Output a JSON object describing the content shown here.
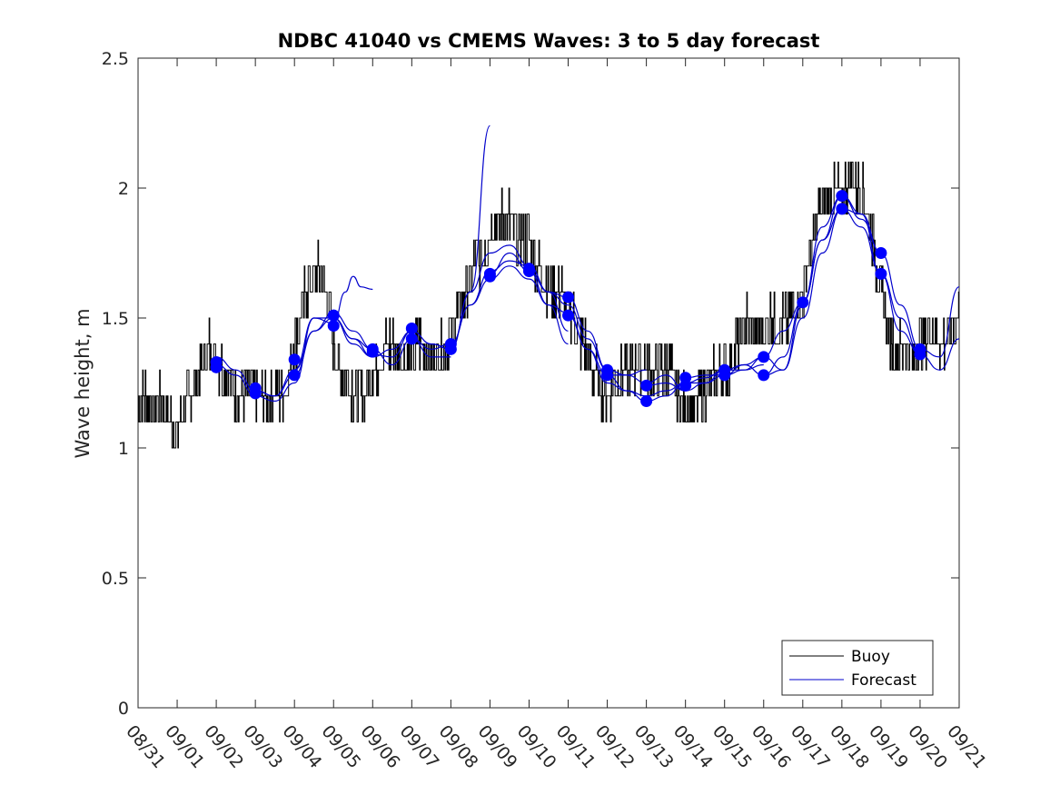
{
  "chart_data": {
    "type": "line",
    "title": "NDBC 41040 vs CMEMS Waves: 3 to 5 day forecast",
    "xlabel": "",
    "ylabel": "Wave height, m",
    "x_ticks": [
      "08/31",
      "09/01",
      "09/02",
      "09/03",
      "09/04",
      "09/05",
      "09/06",
      "09/07",
      "09/08",
      "09/09",
      "09/10",
      "09/11",
      "09/12",
      "09/13",
      "09/14",
      "09/15",
      "09/16",
      "09/17",
      "09/18",
      "09/19",
      "09/20",
      "09/21"
    ],
    "xlim_days": [
      0,
      21
    ],
    "ylim": [
      0,
      2.5
    ],
    "y_ticks": [
      "0",
      "0.5",
      "1",
      "1.5",
      "2",
      "2.5"
    ],
    "grid": false,
    "legend": {
      "position": "bottom-right",
      "entries": [
        "Buoy",
        "Forecast"
      ]
    },
    "colors": {
      "buoy": "#000000",
      "forecast": "#0000cc",
      "marker": "#0000ff",
      "axis": "#262626"
    },
    "series": [
      {
        "name": "Buoy",
        "x": [
          0,
          0.2,
          0.4,
          0.6,
          0.8,
          1.0,
          1.2,
          1.4,
          1.6,
          1.8,
          2.0,
          2.2,
          2.4,
          2.6,
          2.8,
          3.0,
          3.2,
          3.4,
          3.6,
          3.8,
          4.0,
          4.2,
          4.4,
          4.6,
          4.8,
          5.0,
          5.2,
          5.4,
          5.6,
          5.8,
          6.0,
          6.2,
          6.4,
          6.6,
          6.8,
          7.0,
          7.2,
          7.4,
          7.6,
          7.8,
          8.0,
          8.2,
          8.4,
          8.6,
          8.8,
          9.0,
          9.2,
          9.4,
          9.6,
          9.8,
          10.0,
          10.2,
          10.4,
          10.6,
          10.8,
          11.0,
          11.2,
          11.4,
          11.6,
          11.8,
          12.0,
          12.2,
          12.4,
          12.6,
          12.8,
          13.0,
          13.2,
          13.4,
          13.6,
          13.8,
          14.0,
          14.2,
          14.4,
          14.6,
          14.8,
          15.0,
          15.2,
          15.4,
          15.6,
          15.8,
          16.0,
          16.2,
          16.4,
          16.6,
          16.8,
          17.0,
          17.2,
          17.4,
          17.6,
          17.8,
          18.0,
          18.2,
          18.4,
          18.6,
          18.8,
          19.0,
          19.2,
          19.4,
          19.6,
          19.8,
          20.0,
          20.2,
          20.4,
          20.6,
          20.8,
          21.0
        ],
        "values": [
          1.15,
          1.2,
          1.15,
          1.2,
          1.12,
          1.05,
          1.15,
          1.22,
          1.3,
          1.38,
          1.35,
          1.3,
          1.25,
          1.2,
          1.25,
          1.2,
          1.18,
          1.22,
          1.2,
          1.25,
          1.4,
          1.55,
          1.65,
          1.68,
          1.6,
          1.4,
          1.3,
          1.25,
          1.2,
          1.2,
          1.3,
          1.35,
          1.4,
          1.38,
          1.35,
          1.35,
          1.4,
          1.35,
          1.35,
          1.4,
          1.45,
          1.55,
          1.6,
          1.7,
          1.75,
          1.85,
          1.85,
          1.9,
          1.85,
          1.8,
          1.8,
          1.7,
          1.65,
          1.6,
          1.6,
          1.55,
          1.45,
          1.4,
          1.3,
          1.25,
          1.22,
          1.25,
          1.3,
          1.3,
          1.35,
          1.32,
          1.3,
          1.3,
          1.3,
          1.2,
          1.15,
          1.15,
          1.2,
          1.25,
          1.28,
          1.3,
          1.35,
          1.45,
          1.5,
          1.45,
          1.45,
          1.5,
          1.45,
          1.5,
          1.55,
          1.6,
          1.75,
          1.9,
          1.95,
          2.0,
          1.95,
          2.05,
          2.0,
          1.95,
          1.8,
          1.6,
          1.45,
          1.35,
          1.4,
          1.35,
          1.4,
          1.45,
          1.45,
          1.4,
          1.45,
          1.5
        ]
      },
      {
        "name": "Forecast",
        "segments": [
          {
            "x": [
              2.0,
              2.5,
              3.0,
              3.5,
              4.0,
              4.5,
              5.0,
              5.5,
              6.0
            ],
            "values": [
              1.35,
              1.3,
              1.22,
              1.2,
              1.28,
              1.45,
              1.52,
              1.45,
              1.38
            ]
          },
          {
            "x": [
              2.0,
              2.5,
              3.0,
              3.5,
              4.0,
              4.5,
              5.0,
              5.5,
              6.0
            ],
            "values": [
              1.32,
              1.28,
              1.2,
              1.18,
              1.25,
              1.5,
              1.5,
              1.42,
              1.35
            ]
          },
          {
            "x": [
              3.0,
              3.5,
              4.0,
              4.5,
              5.0,
              5.3,
              5.5,
              5.7,
              6.0
            ],
            "values": [
              1.22,
              1.2,
              1.3,
              1.5,
              1.48,
              1.6,
              1.66,
              1.62,
              1.61
            ]
          },
          {
            "x": [
              4.0,
              4.5,
              5.0,
              5.5,
              6.0,
              6.5,
              7.0,
              7.5,
              8.0
            ],
            "values": [
              1.3,
              1.45,
              1.5,
              1.4,
              1.35,
              1.38,
              1.45,
              1.4,
              1.38
            ]
          },
          {
            "x": [
              5.0,
              5.5,
              6.0,
              6.5,
              7.0,
              7.5,
              8.0
            ],
            "values": [
              1.5,
              1.42,
              1.38,
              1.32,
              1.42,
              1.35,
              1.35
            ]
          },
          {
            "x": [
              6.0,
              6.5,
              7.0,
              7.5,
              8.0,
              8.5,
              9.0
            ],
            "values": [
              1.36,
              1.35,
              1.45,
              1.4,
              1.38,
              1.6,
              2.24
            ]
          },
          {
            "x": [
              7.0,
              7.5,
              8.0,
              8.5,
              9.0,
              9.5,
              10.0,
              10.5,
              11.0
            ],
            "values": [
              1.42,
              1.38,
              1.4,
              1.55,
              1.68,
              1.72,
              1.7,
              1.6,
              1.45
            ]
          },
          {
            "x": [
              8.0,
              8.5,
              9.0,
              9.5,
              10.0,
              10.5,
              11.0,
              11.5,
              12.0
            ],
            "values": [
              1.38,
              1.6,
              1.75,
              1.78,
              1.7,
              1.6,
              1.55,
              1.42,
              1.3
            ]
          },
          {
            "x": [
              8.0,
              8.5,
              9.0,
              9.5,
              10.0,
              10.5,
              11.0
            ],
            "values": [
              1.4,
              1.55,
              1.65,
              1.7,
              1.65,
              1.55,
              1.4
            ]
          },
          {
            "x": [
              9.0,
              9.5,
              10.0,
              10.5,
              11.0,
              11.5,
              12.0,
              12.5,
              13.0
            ],
            "values": [
              1.67,
              1.75,
              1.68,
              1.55,
              1.52,
              1.38,
              1.28,
              1.28,
              1.3
            ]
          },
          {
            "x": [
              10.0,
              10.5,
              11.0,
              11.5,
              12.0,
              12.5,
              13.0,
              13.5,
              14.0
            ],
            "values": [
              1.68,
              1.6,
              1.58,
              1.45,
              1.3,
              1.28,
              1.25,
              1.28,
              1.22
            ]
          },
          {
            "x": [
              11.0,
              11.5,
              12.0,
              12.5,
              13.0,
              13.5,
              14.0,
              14.5,
              15.0
            ],
            "values": [
              1.51,
              1.38,
              1.25,
              1.22,
              1.2,
              1.22,
              1.25,
              1.27,
              1.3
            ]
          },
          {
            "x": [
              12.0,
              12.5,
              13.0,
              13.5,
              14.0,
              14.5,
              15.0,
              15.5,
              16.0
            ],
            "values": [
              1.28,
              1.22,
              1.18,
              1.2,
              1.25,
              1.25,
              1.28,
              1.3,
              1.32
            ]
          },
          {
            "x": [
              13.0,
              13.5,
              14.0,
              14.5,
              15.0,
              15.5,
              16.0,
              16.5,
              17.0
            ],
            "values": [
              1.24,
              1.25,
              1.22,
              1.25,
              1.3,
              1.32,
              1.35,
              1.3,
              1.55
            ]
          },
          {
            "x": [
              14.0,
              14.5,
              15.0,
              15.5,
              16.0,
              16.5,
              17.0,
              17.5,
              18.0
            ],
            "values": [
              1.27,
              1.28,
              1.28,
              1.32,
              1.28,
              1.35,
              1.56,
              1.8,
              1.92
            ]
          },
          {
            "x": [
              15.0,
              15.5,
              16.0,
              16.5,
              17.0,
              17.5,
              18.0,
              18.5,
              19.0
            ],
            "values": [
              1.3,
              1.3,
              1.35,
              1.45,
              1.56,
              1.85,
              1.97,
              1.9,
              1.75
            ]
          },
          {
            "x": [
              16.0,
              16.5,
              17.0,
              17.5,
              18.0,
              18.5,
              19.0,
              19.5,
              20.0
            ],
            "values": [
              1.28,
              1.3,
              1.5,
              1.75,
              1.92,
              1.85,
              1.67,
              1.5,
              1.36
            ]
          },
          {
            "x": [
              17.0,
              17.5,
              18.0,
              18.5,
              19.0,
              19.5,
              20.0,
              20.5,
              21.0
            ],
            "values": [
              1.56,
              1.8,
              1.97,
              1.88,
              1.75,
              1.55,
              1.38,
              1.35,
              1.62
            ]
          },
          {
            "x": [
              18.0,
              18.5,
              19.0,
              19.5,
              20.0,
              20.5,
              21.0
            ],
            "values": [
              1.92,
              1.9,
              1.67,
              1.45,
              1.36,
              1.3,
              1.42
            ]
          }
        ]
      }
    ],
    "forecast_markers": [
      {
        "x": 2.0,
        "y": 1.33
      },
      {
        "x": 2.0,
        "y": 1.31
      },
      {
        "x": 3.0,
        "y": 1.23
      },
      {
        "x": 3.0,
        "y": 1.21
      },
      {
        "x": 4.0,
        "y": 1.34
      },
      {
        "x": 4.0,
        "y": 1.28
      },
      {
        "x": 5.0,
        "y": 1.51
      },
      {
        "x": 5.0,
        "y": 1.47
      },
      {
        "x": 6.0,
        "y": 1.38
      },
      {
        "x": 6.0,
        "y": 1.37
      },
      {
        "x": 7.0,
        "y": 1.46
      },
      {
        "x": 7.0,
        "y": 1.42
      },
      {
        "x": 8.0,
        "y": 1.4
      },
      {
        "x": 8.0,
        "y": 1.38
      },
      {
        "x": 9.0,
        "y": 1.67
      },
      {
        "x": 9.0,
        "y": 1.66
      },
      {
        "x": 10.0,
        "y": 1.69
      },
      {
        "x": 10.0,
        "y": 1.68
      },
      {
        "x": 11.0,
        "y": 1.58
      },
      {
        "x": 11.0,
        "y": 1.51
      },
      {
        "x": 12.0,
        "y": 1.3
      },
      {
        "x": 12.0,
        "y": 1.28
      },
      {
        "x": 13.0,
        "y": 1.24
      },
      {
        "x": 13.0,
        "y": 1.18
      },
      {
        "x": 14.0,
        "y": 1.27
      },
      {
        "x": 14.0,
        "y": 1.24
      },
      {
        "x": 15.0,
        "y": 1.3
      },
      {
        "x": 15.0,
        "y": 1.28
      },
      {
        "x": 16.0,
        "y": 1.35
      },
      {
        "x": 16.0,
        "y": 1.28
      },
      {
        "x": 17.0,
        "y": 1.56
      },
      {
        "x": 18.0,
        "y": 1.97
      },
      {
        "x": 18.0,
        "y": 1.92
      },
      {
        "x": 19.0,
        "y": 1.75
      },
      {
        "x": 19.0,
        "y": 1.67
      },
      {
        "x": 20.0,
        "y": 1.38
      },
      {
        "x": 20.0,
        "y": 1.36
      }
    ]
  }
}
